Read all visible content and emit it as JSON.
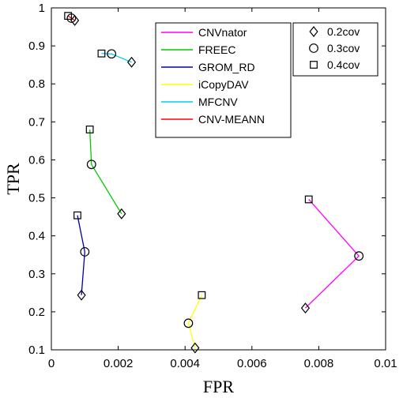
{
  "chart_data": {
    "type": "scatter",
    "xlabel": "FPR",
    "ylabel": "TPR",
    "xlim": [
      0,
      0.01
    ],
    "ylim": [
      0.1,
      1
    ],
    "x_ticks": [
      "0",
      "0.002",
      "0.004",
      "0.006",
      "0.008",
      "0.01"
    ],
    "y_ticks": [
      "0.1",
      "0.2",
      "0.3",
      "0.4",
      "0.5",
      "0.6",
      "0.7",
      "0.8",
      "0.9",
      "1"
    ],
    "grid": false,
    "coverage_markers": [
      {
        "name": "0.2cov",
        "marker": "diamond"
      },
      {
        "name": "0.3cov",
        "marker": "circle"
      },
      {
        "name": "0.4cov",
        "marker": "square"
      }
    ],
    "series": [
      {
        "name": "CNVnator",
        "color": "#ff00ff",
        "points": [
          [
            0.0076,
            0.21
          ],
          [
            0.0092,
            0.347
          ],
          [
            0.0077,
            0.496
          ]
        ]
      },
      {
        "name": "FREEC",
        "color": "#00cc00",
        "points": [
          [
            0.0021,
            0.458
          ],
          [
            0.0012,
            0.588
          ],
          [
            0.00115,
            0.68
          ]
        ]
      },
      {
        "name": "GROM_RD",
        "color": "#0000aa",
        "points": [
          [
            0.0009,
            0.244
          ],
          [
            0.001,
            0.358
          ],
          [
            0.00078,
            0.454
          ]
        ]
      },
      {
        "name": "iCopyDAV",
        "color": "#ffff00",
        "points": [
          [
            0.0043,
            0.105
          ],
          [
            0.0041,
            0.17
          ],
          [
            0.0045,
            0.244
          ]
        ]
      },
      {
        "name": "MFCNV",
        "color": "#00ccee",
        "points": [
          [
            0.0024,
            0.857
          ],
          [
            0.0018,
            0.879
          ],
          [
            0.0015,
            0.88
          ]
        ]
      },
      {
        "name": "CNV-MEANN",
        "color": "#ff0000",
        "points": [
          [
            0.0007,
            0.967
          ],
          [
            0.0006,
            0.973
          ],
          [
            0.0005,
            0.979
          ]
        ]
      }
    ]
  }
}
